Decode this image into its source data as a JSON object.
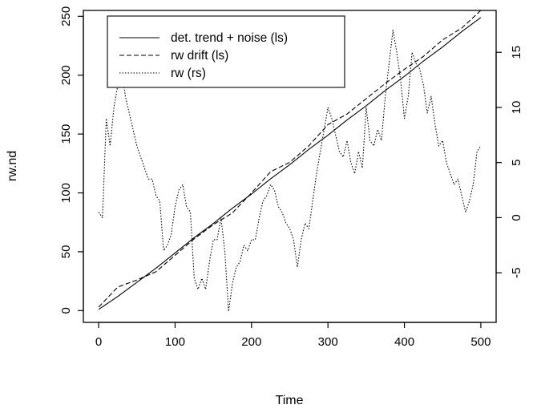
{
  "chart_data": {
    "type": "line",
    "xlabel": "Time",
    "ylabel": "rw.nd",
    "xlim": [
      -20,
      520
    ],
    "ylim_left": [
      -10,
      255
    ],
    "ylim_right": [
      -9.5,
      18.8
    ],
    "x_ticks": [
      0,
      100,
      200,
      300,
      400,
      500
    ],
    "y_ticks_left": [
      0,
      50,
      100,
      150,
      200,
      250
    ],
    "y_ticks_right": [
      -5,
      0,
      5,
      10,
      15
    ],
    "legend_position": "top-left",
    "series": [
      {
        "name": "det. trend + noise (ls)",
        "axis": "left",
        "line_style": "solid",
        "x": [
          0,
          25,
          50,
          75,
          100,
          125,
          150,
          175,
          200,
          225,
          250,
          275,
          300,
          325,
          350,
          375,
          400,
          425,
          450,
          475,
          500
        ],
        "y": [
          1,
          12,
          24,
          36,
          49,
          62,
          74,
          87,
          99,
          112,
          124,
          137,
          149,
          162,
          174,
          187,
          199,
          212,
          224,
          237,
          249
        ]
      },
      {
        "name": "rw drift (ls)",
        "axis": "left",
        "line_style": "dashed",
        "x": [
          0,
          25,
          50,
          75,
          100,
          125,
          150,
          175,
          200,
          225,
          250,
          275,
          300,
          325,
          350,
          375,
          400,
          425,
          450,
          475,
          500
        ],
        "y": [
          3,
          20,
          26,
          33,
          47,
          61,
          73,
          83,
          100,
          118,
          126,
          140,
          158,
          167,
          180,
          193,
          205,
          216,
          230,
          240,
          255
        ]
      },
      {
        "name": "rw (rs)",
        "axis": "right",
        "line_style": "dotted",
        "x": [
          0,
          5,
          10,
          15,
          20,
          25,
          30,
          35,
          40,
          45,
          50,
          55,
          60,
          65,
          70,
          75,
          80,
          85,
          90,
          95,
          100,
          105,
          110,
          115,
          120,
          125,
          130,
          135,
          140,
          145,
          150,
          155,
          160,
          165,
          170,
          175,
          180,
          185,
          190,
          195,
          200,
          205,
          210,
          215,
          220,
          225,
          230,
          235,
          240,
          245,
          250,
          255,
          260,
          265,
          270,
          275,
          280,
          285,
          290,
          295,
          300,
          305,
          310,
          315,
          320,
          325,
          330,
          335,
          340,
          345,
          350,
          355,
          360,
          365,
          370,
          375,
          380,
          385,
          390,
          395,
          400,
          405,
          410,
          415,
          420,
          425,
          430,
          435,
          440,
          445,
          450,
          455,
          460,
          465,
          470,
          475,
          480,
          485,
          490,
          495,
          500
        ],
        "y": [
          0.5,
          0,
          9,
          6.5,
          10,
          12,
          13.5,
          11,
          9.5,
          8,
          6.5,
          5.5,
          4.5,
          3.5,
          3.5,
          2,
          1.5,
          -3,
          -2.5,
          -1.5,
          1,
          2.5,
          3,
          1,
          0.5,
          -5.5,
          -6.5,
          -5.5,
          -6.5,
          -4,
          -2,
          -2,
          0,
          -3,
          -8.5,
          -6,
          -4.5,
          -4,
          -2.5,
          -3,
          -2,
          -2,
          0,
          1.5,
          2,
          3,
          2.5,
          1,
          0.5,
          -0.5,
          -1,
          -2,
          -4.5,
          -2,
          -0.5,
          -1,
          1.5,
          4,
          6,
          8,
          10,
          9,
          7.5,
          6,
          5.5,
          7,
          5,
          4,
          6,
          4.5,
          10,
          7,
          6.5,
          8,
          7,
          11,
          14,
          17,
          15,
          12.5,
          9,
          11,
          15,
          14,
          13.5,
          12,
          9.5,
          11,
          8.5,
          6.5,
          7,
          5,
          4,
          3,
          3.5,
          2,
          0.5,
          1.5,
          3,
          6,
          6.5
        ]
      }
    ]
  }
}
